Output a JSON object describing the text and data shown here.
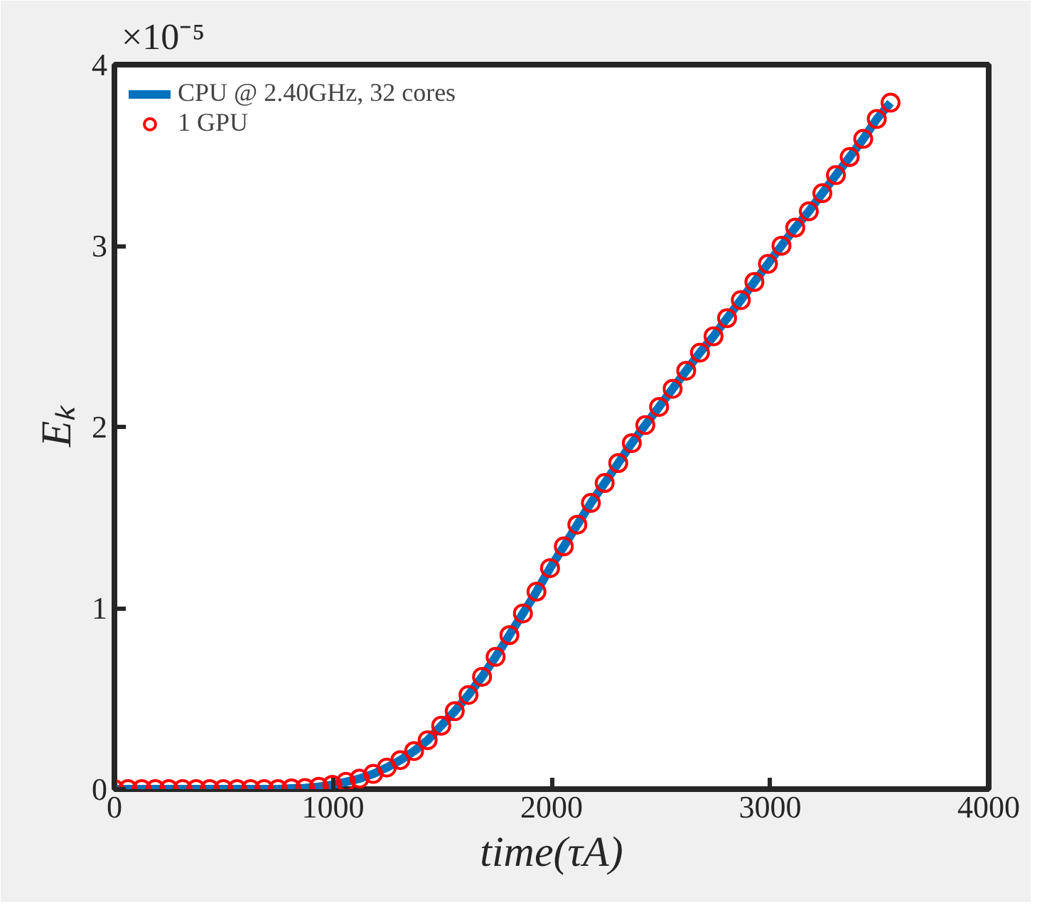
{
  "chart_data": {
    "type": "line",
    "xlabel": "time(τA)",
    "ylabel": "Eₖ",
    "annotations": [
      "×10⁻⁵"
    ],
    "x": [
      0,
      62,
      125,
      187,
      249,
      312,
      374,
      436,
      498,
      561,
      623,
      685,
      748,
      810,
      872,
      935,
      997,
      1059,
      1121,
      1184,
      1246,
      1308,
      1371,
      1433,
      1495,
      1557,
      1620,
      1682,
      1744,
      1807,
      1869,
      1931,
      1993,
      2056,
      2118,
      2180,
      2243,
      2305,
      2367,
      2429,
      2492,
      2554,
      2616,
      2679,
      2741,
      2803,
      2866,
      2928,
      2990,
      3052,
      3115,
      3177,
      3239,
      3301,
      3364,
      3426,
      3488,
      3551
    ],
    "series": [
      {
        "name": "CPU @ 2.40GHz, 32 cores",
        "type": "line",
        "color": "#0072bd",
        "line_style": "solid",
        "values": [
          0,
          0,
          0,
          0,
          0,
          0,
          0,
          0,
          0,
          0,
          0,
          0,
          0,
          0.004,
          0.006,
          0.013,
          0.024,
          0.04,
          0.058,
          0.084,
          0.119,
          0.16,
          0.21,
          0.27,
          0.35,
          0.43,
          0.52,
          0.62,
          0.73,
          0.85,
          0.97,
          1.09,
          1.22,
          1.34,
          1.46,
          1.58,
          1.69,
          1.8,
          1.91,
          2.01,
          2.11,
          2.21,
          2.31,
          2.41,
          2.5,
          2.6,
          2.7,
          2.8,
          2.9,
          3.0,
          3.1,
          3.19,
          3.29,
          3.39,
          3.49,
          3.59,
          3.7,
          3.79
        ]
      },
      {
        "name": "1 GPU",
        "type": "scatter",
        "marker": "circle",
        "color": "#ff0000",
        "values": [
          0,
          0,
          0,
          0,
          0,
          0,
          0,
          0,
          0,
          0,
          0,
          0,
          0,
          0.004,
          0.006,
          0.013,
          0.024,
          0.04,
          0.058,
          0.084,
          0.119,
          0.16,
          0.21,
          0.27,
          0.35,
          0.43,
          0.52,
          0.62,
          0.73,
          0.85,
          0.97,
          1.09,
          1.22,
          1.34,
          1.46,
          1.58,
          1.69,
          1.8,
          1.91,
          2.01,
          2.11,
          2.21,
          2.31,
          2.41,
          2.5,
          2.6,
          2.7,
          2.8,
          2.9,
          3.0,
          3.1,
          3.19,
          3.29,
          3.39,
          3.49,
          3.59,
          3.7,
          3.79
        ]
      }
    ],
    "xlim": [
      0,
      4000
    ],
    "ylim": [
      0,
      4
    ],
    "xticks": [
      0,
      1000,
      2000,
      3000,
      4000
    ],
    "yticks": [
      0,
      1,
      2,
      3,
      4
    ],
    "grid": false,
    "legend": "top left"
  }
}
